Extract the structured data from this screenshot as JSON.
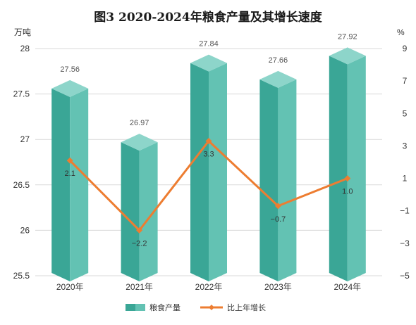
{
  "chart_data": {
    "type": "bar",
    "title": "图3   2020-2024年粮食产量及其增长速度",
    "categories": [
      "2020年",
      "2021年",
      "2022年",
      "2023年",
      "2024年"
    ],
    "series": [
      {
        "name": "粮食产量",
        "type": "bar",
        "axis": "left",
        "values": [
          27.56,
          26.97,
          27.84,
          27.66,
          27.92
        ],
        "labels": [
          "27.56",
          "26.97",
          "27.84",
          "27.66",
          "27.92"
        ],
        "color": "#4db8a8"
      },
      {
        "name": "比上年增长",
        "type": "line",
        "axis": "right",
        "values": [
          2.1,
          -2.2,
          3.3,
          -0.7,
          1.0
        ],
        "labels": [
          "2.1",
          "−2.2",
          "3.3",
          "−0.7",
          "1.0"
        ],
        "color": "#ed7d31"
      }
    ],
    "y_left": {
      "unit": "万吨",
      "min": 25.5,
      "max": 28,
      "ticks": [
        "25.5",
        "26",
        "26.5",
        "27",
        "27.5",
        "28"
      ]
    },
    "y_right": {
      "unit": "%",
      "min": -5,
      "max": 9,
      "ticks": [
        "−5",
        "−3",
        "−1",
        "1",
        "3",
        "5",
        "7",
        "9"
      ]
    },
    "grid": true,
    "legend_position": "bottom"
  }
}
